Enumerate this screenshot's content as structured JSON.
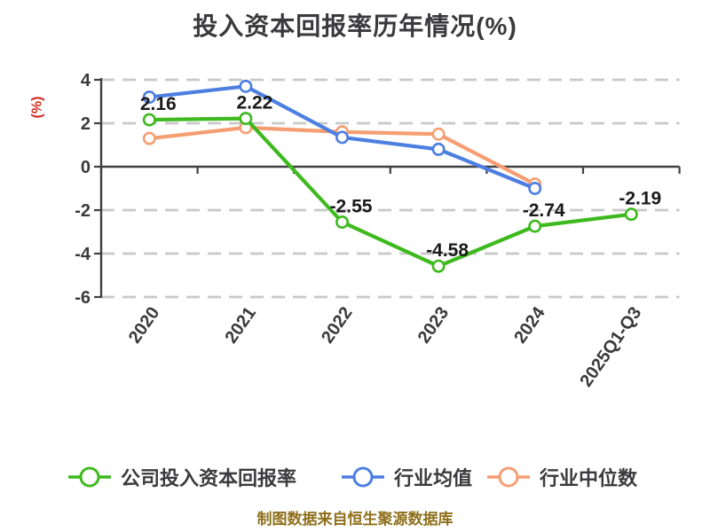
{
  "chart_data": {
    "type": "line",
    "title": "投入资本回报率历年情况(%)",
    "ylabel": "(%)",
    "xlabel": "",
    "categories": [
      "2020",
      "2021",
      "2022",
      "2023",
      "2024",
      "2025Q1-Q3"
    ],
    "ylim": [
      -6,
      4
    ],
    "yticks": [
      4,
      2,
      0,
      -2,
      -4,
      -6
    ],
    "grid": "horizontal-dashed",
    "legend_position": "bottom",
    "series": [
      {
        "name": "公司投入资本回报率",
        "color": "#3eb91e",
        "values": [
          2.16,
          2.22,
          -2.55,
          -4.58,
          -2.74,
          -2.19
        ],
        "point_labels": [
          "2.16",
          "2.22",
          "-2.55",
          "-4.58",
          "-2.74",
          "-2.19"
        ]
      },
      {
        "name": "行业均值",
        "color": "#4c7fe1",
        "values": [
          3.2,
          3.7,
          1.35,
          0.8,
          -1.0,
          null
        ],
        "point_labels": null
      },
      {
        "name": "行业中位数",
        "color": "#f59e72",
        "values": [
          1.3,
          1.8,
          1.6,
          1.5,
          -0.8,
          null
        ],
        "point_labels": null
      }
    ]
  },
  "footer": {
    "text": "制图数据来自恒生聚源数据库"
  },
  "colors": {
    "title": "#3a3a3c",
    "ylabel": "#d3281e",
    "axis": "#404043",
    "grid": "#c9c9c9",
    "tick_label": "#3a3a3c",
    "data_label": "#1a1a1a",
    "footer": "#8e6f1b",
    "marker_fill": "#ffffff"
  }
}
